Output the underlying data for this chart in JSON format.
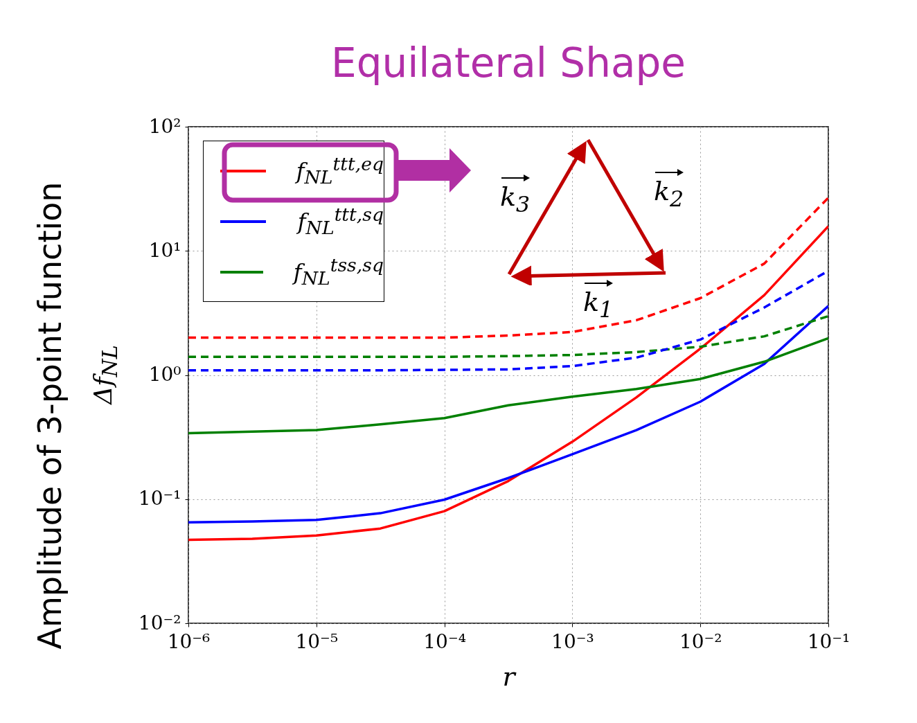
{
  "chart_data": {
    "type": "line",
    "title": "Equilateral Shape",
    "xlabel": "r",
    "ylabel": "Δf$_{NL}$",
    "annotations": [
      "Amplitude of 3-point function",
      "k$_{3}$",
      "k$_{2}$",
      "k$_{1}$"
    ],
    "x": [
      1e-06,
      3.16e-06,
      1e-05,
      3.16e-05,
      0.0001,
      0.000316,
      0.001,
      0.00316,
      0.01,
      0.0316,
      0.1
    ],
    "series": [
      {
        "name": "f$_{NL}$$^{ttt,eq}$",
        "color": "#ff0000",
        "line_style": "solid",
        "values": [
          0.047,
          0.048,
          0.051,
          0.058,
          0.08,
          0.14,
          0.29,
          0.66,
          1.63,
          4.4,
          15.8
        ]
      },
      {
        "name": "f$_{NL}$$^{ttt,sq}$",
        "color": "#0000ff",
        "line_style": "solid",
        "values": [
          0.065,
          0.066,
          0.068,
          0.077,
          0.099,
          0.148,
          0.23,
          0.36,
          0.61,
          1.23,
          3.6
        ]
      },
      {
        "name": "f$_{NL}$$^{tss,sq}$",
        "color": "#008000",
        "line_style": "solid",
        "values": [
          0.34,
          0.35,
          0.36,
          0.4,
          0.45,
          0.57,
          0.67,
          0.77,
          0.93,
          1.28,
          1.98
        ]
      },
      {
        "color": "#ff0000",
        "line_style": "dashed",
        "values": [
          2.0,
          2.0,
          2.0,
          2.0,
          2.0,
          2.08,
          2.22,
          2.76,
          4.16,
          7.9,
          26.8
        ]
      },
      {
        "color": "#008000",
        "line_style": "dashed",
        "values": [
          1.4,
          1.4,
          1.4,
          1.4,
          1.4,
          1.42,
          1.45,
          1.53,
          1.69,
          2.05,
          2.98
        ]
      },
      {
        "color": "#0000ff",
        "line_style": "dashed",
        "values": [
          1.09,
          1.09,
          1.09,
          1.09,
          1.1,
          1.11,
          1.18,
          1.38,
          1.93,
          3.5,
          6.9
        ]
      }
    ],
    "log": "xy",
    "grid": true,
    "legend": "top left",
    "marker": "none",
    "xlim": [
      1e-06,
      0.1
    ],
    "ylim": [
      0.01,
      100
    ],
    "xticks": [
      {
        "value": 1e-06,
        "label": "10⁻⁶"
      },
      {
        "value": 1e-05,
        "label": "10⁻⁵"
      },
      {
        "value": 0.0001,
        "label": "10⁻⁴"
      },
      {
        "value": 0.001,
        "label": "10⁻³"
      },
      {
        "value": 0.01,
        "label": "10⁻²"
      },
      {
        "value": 0.1,
        "label": "10⁻¹"
      }
    ],
    "yticks": [
      {
        "value": 0.01,
        "label": "10⁻²"
      },
      {
        "value": 0.1,
        "label": "10⁻¹"
      },
      {
        "value": 1,
        "label": "10⁰"
      },
      {
        "value": 10,
        "label": "10¹"
      },
      {
        "value": 100,
        "label": "10²"
      }
    ]
  }
}
